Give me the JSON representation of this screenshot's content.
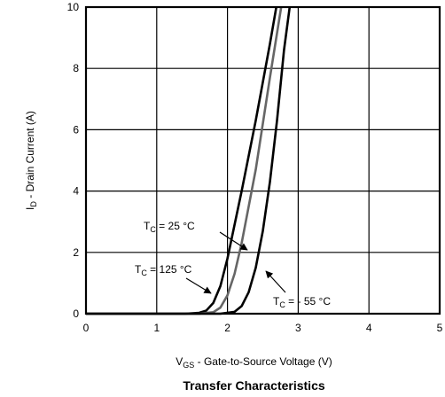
{
  "chart_data": {
    "type": "line",
    "title": "Transfer Characteristics",
    "xlabel_main": "V",
    "xlabel_sub": "GS",
    "xlabel_rest": " - Gate-to-Source Voltage (V)",
    "ylabel_main": "I",
    "ylabel_sub": "D",
    "ylabel_rest": " - Drain Current (A)",
    "xlim": [
      0,
      5
    ],
    "ylim": [
      0,
      10
    ],
    "x_ticks": [
      "0",
      "1",
      "2",
      "3",
      "4",
      "5"
    ],
    "y_ticks": [
      "0",
      "2",
      "4",
      "6",
      "8",
      "10"
    ],
    "grid": true,
    "series": [
      {
        "label_main": "T",
        "label_sub": "C",
        "label_rest": " = 125 °C",
        "color": "#000000",
        "x": [
          0.0,
          1.4,
          1.6,
          1.7,
          1.8,
          1.9,
          2.0,
          2.2,
          2.4,
          2.6,
          2.69
        ],
        "y": [
          0.0,
          0.0,
          0.03,
          0.1,
          0.35,
          0.9,
          1.8,
          4.0,
          6.3,
          8.8,
          10.0
        ]
      },
      {
        "label_main": "T",
        "label_sub": "C",
        "label_rest": " = 25 °C",
        "color": "#666666",
        "x": [
          0.0,
          1.6,
          1.8,
          1.9,
          2.0,
          2.1,
          2.2,
          2.4,
          2.6,
          2.76
        ],
        "y": [
          0.0,
          0.0,
          0.05,
          0.2,
          0.6,
          1.3,
          2.3,
          4.7,
          7.7,
          10.0
        ]
      },
      {
        "label_main": "T",
        "label_sub": "C",
        "label_rest": " = - 55 °C",
        "color": "#000000",
        "x": [
          0.0,
          1.9,
          2.1,
          2.2,
          2.3,
          2.4,
          2.5,
          2.6,
          2.7,
          2.8,
          2.88
        ],
        "y": [
          0.0,
          0.0,
          0.06,
          0.25,
          0.7,
          1.5,
          2.7,
          4.3,
          6.3,
          8.6,
          10.0
        ]
      }
    ]
  }
}
